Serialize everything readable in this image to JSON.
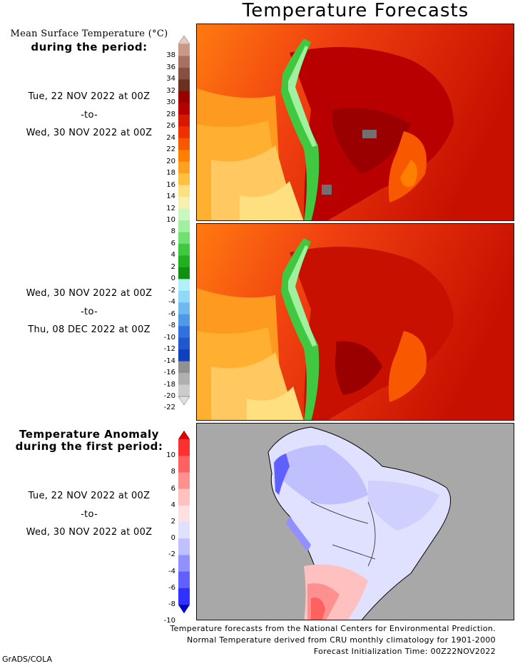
{
  "title": "Temperature Forecasts",
  "mean_label_line1": "Mean Surface Temperature (°C)",
  "mean_label_line2": "during the period:",
  "period1": {
    "start": "Tue, 22 NOV 2022 at 00Z",
    "sep": "-to-",
    "end": "Wed, 30 NOV 2022 at 00Z"
  },
  "period2": {
    "start": "Wed, 30 NOV 2022 at 00Z",
    "sep": "-to-",
    "end": "Thu, 08 DEC 2022 at 00Z"
  },
  "anomaly_label_line1": "Temperature Anomaly",
  "anomaly_label_line2": "during the first period:",
  "period3": {
    "start": "Tue, 22 NOV 2022 at 00Z",
    "sep": "-to-",
    "end": "Wed, 30 NOV 2022 at 00Z"
  },
  "temp_scale": {
    "ticks": [
      "38",
      "36",
      "34",
      "32",
      "30",
      "28",
      "26",
      "24",
      "22",
      "20",
      "18",
      "16",
      "14",
      "12",
      "10",
      "8",
      "6",
      "4",
      "2",
      "0",
      "-2",
      "-4",
      "-6",
      "-8",
      "-10",
      "-12",
      "-14",
      "-16",
      "-18",
      "-20",
      "-22"
    ],
    "colors": [
      "#e8c8c0",
      "#c89888",
      "#a87060",
      "#885040",
      "#6a3020",
      "#9a0000",
      "#b80000",
      "#d81800",
      "#f03000",
      "#f85800",
      "#ff8000",
      "#ffa020",
      "#ffc040",
      "#ffe080",
      "#f8f0b0",
      "#c8f8c0",
      "#a0f0a0",
      "#70e070",
      "#40c840",
      "#20b020",
      "#109010",
      "#b0f0f8",
      "#90d8f8",
      "#70b8f0",
      "#5098e8",
      "#3070e0",
      "#2058d0",
      "#1040c0",
      "#909090",
      "#b0b0b0",
      "#cccccc",
      "#e0e0e0"
    ]
  },
  "anomaly_scale": {
    "ticks": [
      "10",
      "8",
      "6",
      "4",
      "2",
      "0",
      "-2",
      "-4",
      "-6",
      "-8",
      "-10"
    ],
    "colors": [
      "#e00000",
      "#ff3030",
      "#ff6060",
      "#ff9090",
      "#ffc0c0",
      "#ffe0e0",
      "#e0e0ff",
      "#c0c0ff",
      "#9090ff",
      "#6060ff",
      "#3030ff",
      "#0000d0"
    ]
  },
  "footer": {
    "line1": "Temperature forecasts from the National Centers for Environmental Prediction.",
    "line2": "Normal Temperature derived from CRU monthly climatology for 1901-2000",
    "line3": "Forecast Initialization Time: 00Z22NOV2022"
  },
  "credit": "GrADS/COLA"
}
